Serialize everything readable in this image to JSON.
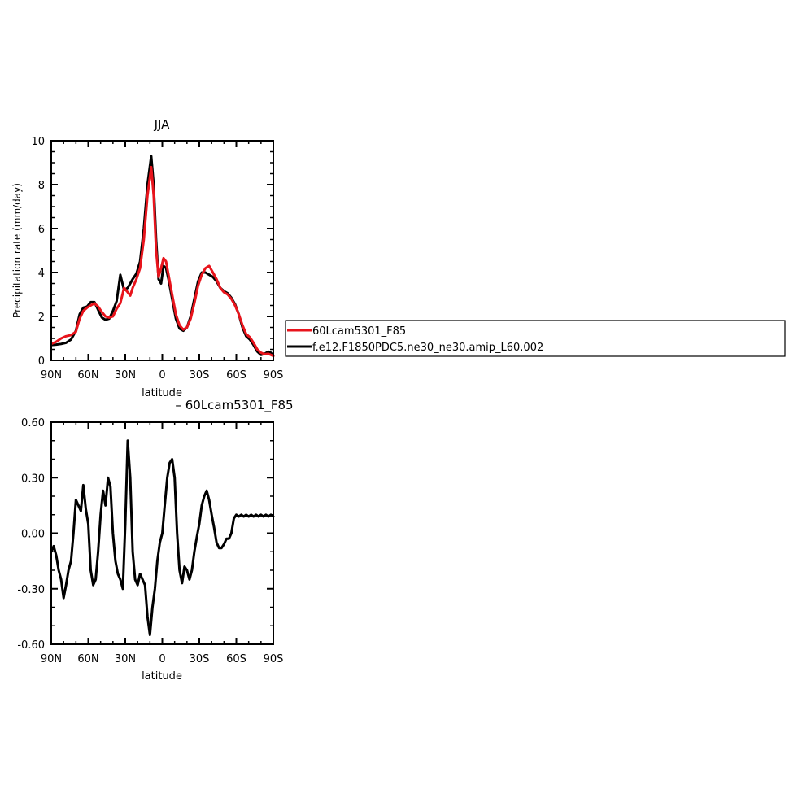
{
  "chart_data": [
    {
      "type": "line",
      "title": "JJA",
      "xlabel": "latitude",
      "ylabel": "Precipitation rate (mm/day)",
      "xlim": [
        90,
        -90
      ],
      "ylim": [
        0,
        10
      ],
      "x_ticks": [
        90,
        60,
        30,
        0,
        -30,
        -60,
        -90
      ],
      "x_tick_labels": [
        "90N",
        "60N",
        "30N",
        "0",
        "30S",
        "60S",
        "90S"
      ],
      "y_ticks": [
        0,
        2,
        4,
        6,
        8,
        10
      ],
      "y_tick_labels": [
        "0",
        "2",
        "4",
        "6",
        "8",
        "10"
      ],
      "grid": false,
      "legend_placement": "right",
      "series": [
        {
          "name": "60Lcam5301_F85",
          "color": "#e8141c",
          "x": [
            90,
            86,
            82,
            78,
            74,
            70,
            67,
            64,
            61,
            58,
            55,
            52,
            49,
            46,
            43,
            40,
            37,
            34,
            31,
            28,
            26,
            24,
            21,
            18,
            15,
            12,
            9,
            7,
            5,
            3,
            1,
            -1,
            -3,
            -5,
            -8,
            -11,
            -14,
            -17,
            -20,
            -23,
            -26,
            -29,
            -32,
            -35,
            -38,
            -41,
            -44,
            -47,
            -50,
            -53,
            -56,
            -59,
            -62,
            -65,
            -68,
            -71,
            -74,
            -77,
            -80,
            -83,
            -86,
            -88,
            -90
          ],
          "y": [
            0.75,
            0.85,
            1.0,
            1.1,
            1.15,
            1.3,
            1.9,
            2.25,
            2.4,
            2.5,
            2.6,
            2.45,
            2.2,
            2.0,
            1.95,
            2.0,
            2.35,
            2.6,
            3.3,
            3.1,
            2.95,
            3.3,
            3.7,
            4.2,
            5.5,
            7.5,
            8.8,
            7.5,
            5.0,
            3.8,
            4.2,
            4.65,
            4.5,
            3.9,
            3.0,
            2.1,
            1.6,
            1.4,
            1.5,
            1.9,
            2.6,
            3.4,
            3.9,
            4.2,
            4.3,
            4.0,
            3.7,
            3.3,
            3.1,
            3.0,
            2.8,
            2.5,
            2.1,
            1.6,
            1.2,
            1.05,
            0.8,
            0.5,
            0.35,
            0.28,
            0.3,
            0.25,
            0.2
          ]
        },
        {
          "name": "f.e12.F1850PDC5.ne30_ne30.amip_L60.002",
          "color": "#000000",
          "x": [
            90,
            86,
            82,
            78,
            74,
            70,
            67,
            64,
            61,
            58,
            55,
            52,
            49,
            46,
            43,
            40,
            37,
            34,
            31,
            28,
            26,
            24,
            21,
            18,
            15,
            12,
            9,
            7,
            5,
            3,
            1,
            -1,
            -3,
            -5,
            -8,
            -11,
            -14,
            -17,
            -20,
            -23,
            -26,
            -29,
            -32,
            -35,
            -38,
            -41,
            -44,
            -47,
            -50,
            -53,
            -56,
            -59,
            -62,
            -65,
            -68,
            -71,
            -74,
            -77,
            -80,
            -83,
            -86,
            -88,
            -90
          ],
          "y": [
            0.7,
            0.72,
            0.75,
            0.8,
            0.95,
            1.35,
            2.1,
            2.4,
            2.45,
            2.65,
            2.65,
            2.3,
            1.95,
            1.85,
            1.9,
            2.25,
            2.7,
            3.9,
            3.2,
            3.3,
            3.5,
            3.7,
            3.95,
            4.5,
            6.0,
            8.0,
            9.3,
            8.0,
            5.5,
            3.7,
            3.5,
            4.3,
            4.2,
            3.7,
            2.8,
            1.9,
            1.45,
            1.35,
            1.5,
            2.0,
            2.8,
            3.6,
            4.0,
            4.0,
            3.9,
            3.8,
            3.6,
            3.3,
            3.15,
            3.05,
            2.85,
            2.55,
            2.1,
            1.5,
            1.1,
            0.95,
            0.7,
            0.4,
            0.25,
            0.3,
            0.4,
            0.35,
            0.2
          ]
        }
      ]
    },
    {
      "type": "line",
      "title": "– 60Lcam5301_F85",
      "xlabel": "latitude",
      "ylabel": "",
      "xlim": [
        90,
        -90
      ],
      "ylim": [
        -0.6,
        0.6
      ],
      "x_ticks": [
        90,
        60,
        30,
        0,
        -30,
        -60,
        -90
      ],
      "x_tick_labels": [
        "90N",
        "60N",
        "30N",
        "0",
        "30S",
        "60S",
        "90S"
      ],
      "y_ticks": [
        -0.6,
        -0.3,
        0.0,
        0.3,
        0.6
      ],
      "y_tick_labels": [
        "-0.60",
        "-0.30",
        "0.00",
        "0.30",
        "0.60"
      ],
      "grid": false,
      "series": [
        {
          "name": "",
          "color": "#000000",
          "x": [
            90,
            88,
            86,
            84,
            82,
            80,
            78,
            76,
            74,
            72,
            70,
            68,
            66,
            64,
            62,
            60,
            58,
            56,
            54,
            52,
            50,
            48,
            46,
            44,
            42,
            40,
            38,
            36,
            34,
            32,
            30,
            28,
            26,
            24,
            22,
            20,
            18,
            16,
            14,
            12,
            10,
            8,
            6,
            4,
            2,
            0,
            -2,
            -4,
            -6,
            -8,
            -10,
            -12,
            -14,
            -16,
            -18,
            -20,
            -22,
            -24,
            -26,
            -28,
            -30,
            -32,
            -34,
            -36,
            -38,
            -40,
            -42,
            -44,
            -46,
            -48,
            -50,
            -52,
            -54,
            -56,
            -58,
            -60,
            -62,
            -64,
            -66,
            -68,
            -70,
            -72,
            -74,
            -76,
            -78,
            -80,
            -82,
            -84,
            -86,
            -88,
            -90
          ],
          "y": [
            -0.1,
            -0.07,
            -0.12,
            -0.2,
            -0.25,
            -0.35,
            -0.28,
            -0.2,
            -0.15,
            0.0,
            0.18,
            0.15,
            0.12,
            0.26,
            0.13,
            0.05,
            -0.2,
            -0.28,
            -0.25,
            -0.1,
            0.1,
            0.23,
            0.15,
            0.3,
            0.25,
            0.0,
            -0.15,
            -0.22,
            -0.25,
            -0.3,
            0.05,
            0.5,
            0.3,
            -0.1,
            -0.25,
            -0.28,
            -0.22,
            -0.25,
            -0.28,
            -0.45,
            -0.55,
            -0.4,
            -0.3,
            -0.15,
            -0.05,
            0.0,
            0.15,
            0.3,
            0.38,
            0.4,
            0.3,
            0.0,
            -0.2,
            -0.27,
            -0.18,
            -0.2,
            -0.25,
            -0.2,
            -0.1,
            -0.02,
            0.05,
            0.15,
            0.2,
            0.23,
            0.18,
            0.1,
            0.03,
            -0.05,
            -0.08,
            -0.08,
            -0.06,
            -0.03,
            -0.03,
            0.0,
            0.08,
            0.1,
            0.09,
            0.1,
            0.09,
            0.1,
            0.09,
            0.1,
            0.09,
            0.1,
            0.09,
            0.1,
            0.09,
            0.1,
            0.09,
            0.1,
            0.09
          ]
        }
      ]
    }
  ]
}
